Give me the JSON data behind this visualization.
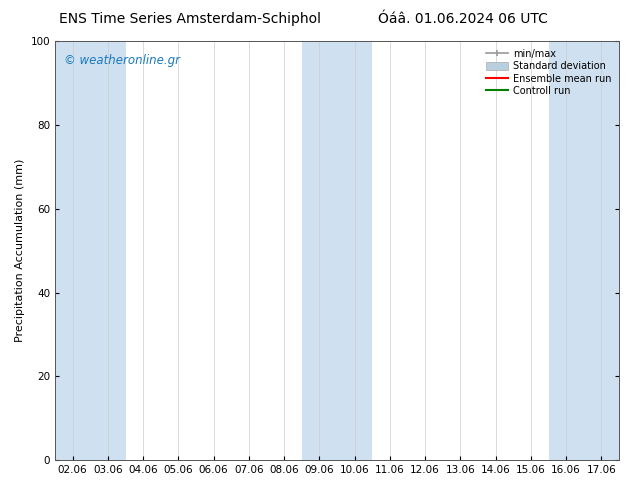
{
  "title_left": "ENS Time Series Amsterdam-Schiphol",
  "title_right": "Óáâ. 01.06.2024 06 UTC",
  "ylabel": "Precipitation Accumulation (mm)",
  "watermark": "© weatheronline.gr",
  "ylim": [
    0,
    100
  ],
  "yticks": [
    0,
    20,
    40,
    60,
    80,
    100
  ],
  "x_labels": [
    "02.06",
    "03.06",
    "04.06",
    "05.06",
    "06.06",
    "07.06",
    "08.06",
    "09.06",
    "10.06",
    "11.06",
    "12.06",
    "13.06",
    "14.06",
    "15.06",
    "16.06",
    "17.06"
  ],
  "shaded_band_indices": [
    0,
    1,
    7,
    8,
    14,
    15
  ],
  "band_color": "#cfe0f0",
  "background_color": "#ffffff",
  "plot_bg_color": "#ffffff",
  "legend_labels": [
    "min/max",
    "Standard deviation",
    "Ensemble mean run",
    "Controll run"
  ],
  "legend_minmax_color": "#999999",
  "legend_std_color": "#b8cfe0",
  "legend_ens_color": "#ff0000",
  "legend_ctrl_color": "#008000",
  "watermark_color": "#1a7abf",
  "title_fontsize": 10,
  "axis_label_fontsize": 8,
  "tick_fontsize": 7.5
}
